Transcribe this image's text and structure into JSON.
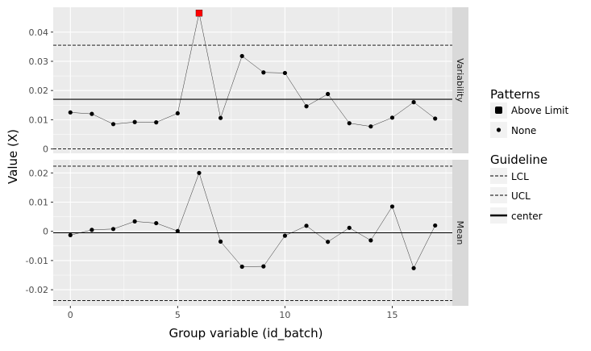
{
  "chart_data": {
    "type": "line",
    "xlabel": "Group variable (id_batch)",
    "ylabel": "Value (X)",
    "xlim": [
      -0.8,
      17.8
    ],
    "xticks": [
      0,
      5,
      10,
      15
    ],
    "x": [
      0,
      1,
      2,
      3,
      4,
      5,
      6,
      7,
      8,
      9,
      10,
      11,
      12,
      13,
      14,
      15,
      16,
      17
    ],
    "panels": [
      {
        "strip_label": "Variability",
        "ylim": [
          -0.0015,
          0.0485
        ],
        "yticks": [
          0,
          0.01,
          0.02,
          0.03,
          0.04
        ],
        "ytick_labels": [
          "0",
          "0.01",
          "0.02",
          "0.03",
          "0.04"
        ],
        "center": 0.017,
        "ucl": 0.0355,
        "lcl": 0.0,
        "values": [
          0.0125,
          0.012,
          0.0085,
          0.0092,
          0.0091,
          0.0122,
          0.0465,
          0.0106,
          0.0318,
          0.0262,
          0.026,
          0.0146,
          0.0188,
          0.0088,
          0.0077,
          0.0107,
          0.016,
          0.0104
        ],
        "patterns": [
          "None",
          "None",
          "None",
          "None",
          "None",
          "None",
          "Above Limit",
          "None",
          "None",
          "None",
          "None",
          "None",
          "None",
          "None",
          "None",
          "None",
          "None",
          "None"
        ]
      },
      {
        "strip_label": "Mean",
        "ylim": [
          -0.0255,
          0.0245
        ],
        "yticks": [
          -0.02,
          -0.01,
          0,
          0.01,
          0.02
        ],
        "ytick_labels": [
          "-0.02",
          "-0.01",
          "0",
          "0.01",
          "0.02"
        ],
        "center": -0.0005,
        "ucl": 0.0223,
        "lcl": -0.0237,
        "values": [
          -0.0013,
          0.0005,
          0.0008,
          0.0034,
          0.0028,
          0.0001,
          0.02,
          -0.0035,
          -0.0121,
          -0.012,
          -0.0015,
          0.0019,
          -0.0036,
          0.0012,
          -0.0031,
          0.0085,
          -0.0126,
          0.002
        ],
        "patterns": [
          "None",
          "None",
          "None",
          "None",
          "None",
          "None",
          "None",
          "None",
          "None",
          "None",
          "None",
          "None",
          "None",
          "None",
          "None",
          "None",
          "None",
          "None"
        ]
      }
    ],
    "legend_patterns": {
      "title": "Patterns",
      "entries": [
        {
          "label": "Above Limit",
          "color": "#000000"
        },
        {
          "label": "None",
          "color": "#000000"
        }
      ]
    },
    "legend_guideline": {
      "title": "Guideline",
      "entries": [
        {
          "label": "LCL",
          "linetype": "dashed"
        },
        {
          "label": "UCL",
          "linetype": "dashed"
        },
        {
          "label": "center",
          "linetype": "solid"
        }
      ]
    },
    "colors": {
      "panel_bg": "#ebebeb",
      "strip_bg": "#d9d9d9",
      "grid": "#ffffff",
      "point": "#000000",
      "above_limit": "#ff0000",
      "text": "#4d4d4d"
    },
    "grid": true,
    "legend_position": "right"
  }
}
